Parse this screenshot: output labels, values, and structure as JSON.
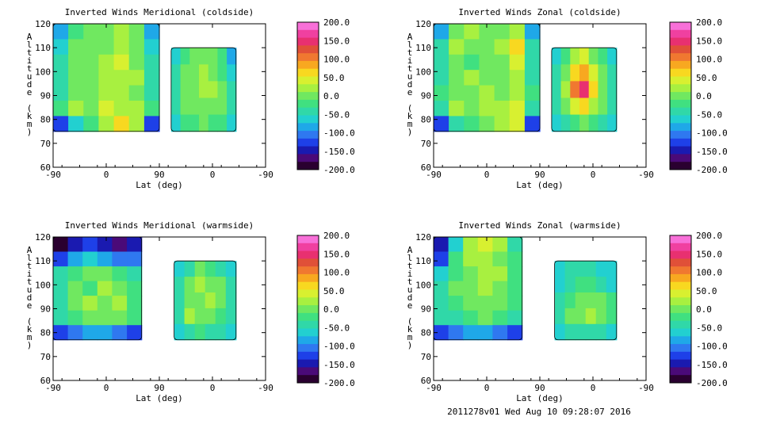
{
  "colorbar": {
    "ticks": [
      "200.0",
      "150.0",
      "100.0",
      "50.0",
      "0.0",
      "-50.0",
      "-100.0",
      "-150.0",
      "-200.0"
    ],
    "colors": [
      "#2a0030",
      "#4a0a78",
      "#1a1ab0",
      "#1e40e8",
      "#2f78f0",
      "#1fa8e8",
      "#22d0d0",
      "#30d8a8",
      "#40e080",
      "#70e860",
      "#a8f040",
      "#d8f030",
      "#f8d820",
      "#f8a820",
      "#f07830",
      "#e05038",
      "#e83070",
      "#f040a0",
      "#f870d8"
    ]
  },
  "footer": {
    "text": "2011278v01 Wed Aug 10 09:28:07 2016"
  },
  "chart_data": [
    {
      "type": "heatmap",
      "title": "Inverted Winds Meridional (coldside)",
      "xlabel": "Lat (deg)",
      "ylabel": "Altitude (km)",
      "x_tick_labels": [
        "-90",
        "0",
        "90",
        "0",
        "-90"
      ],
      "y_tick_labels": [
        "60",
        "70",
        "80",
        "90",
        "100",
        "110",
        "120"
      ],
      "ylim": [
        60,
        120
      ],
      "colorbar_range": [
        -200,
        200
      ],
      "legend_position": "right",
      "regions": [
        {
          "x0": -90,
          "x1": 90,
          "y0": 75,
          "y1": 120,
          "values": [
            [
              -90,
              -20,
              0,
              5,
              20,
              -10,
              -90
            ],
            [
              -60,
              0,
              5,
              10,
              30,
              0,
              -60
            ],
            [
              -40,
              10,
              0,
              20,
              40,
              10,
              -40
            ],
            [
              -40,
              5,
              10,
              15,
              30,
              15,
              -40
            ],
            [
              -50,
              0,
              10,
              30,
              20,
              10,
              -50
            ],
            [
              -30,
              20,
              10,
              40,
              30,
              20,
              -30
            ],
            [
              -120,
              -60,
              -20,
              20,
              60,
              30,
              -120
            ]
          ]
        },
        {
          "x0": 110,
          "x1": 220,
          "y0": 75,
          "y1": 110,
          "values": [
            [
              -60,
              -20,
              -10,
              -10,
              0,
              -30,
              -80
            ],
            [
              -40,
              -10,
              10,
              30,
              0,
              -20,
              -60
            ],
            [
              -40,
              0,
              10,
              20,
              20,
              0,
              -40
            ],
            [
              -40,
              -10,
              0,
              10,
              0,
              -10,
              -40
            ],
            [
              -60,
              -30,
              -20,
              -10,
              -20,
              -30,
              -60
            ]
          ]
        }
      ]
    },
    {
      "type": "heatmap",
      "title": "Inverted Winds Zonal (coldside)",
      "xlabel": "Lat (deg)",
      "ylabel": "Altitude (km)",
      "x_tick_labels": [
        "-90",
        "0",
        "90",
        "0",
        "-90"
      ],
      "y_tick_labels": [
        "60",
        "70",
        "80",
        "90",
        "100",
        "110",
        "120"
      ],
      "ylim": [
        60,
        120
      ],
      "colorbar_range": [
        -200,
        200
      ],
      "legend_position": "right",
      "regions": [
        {
          "x0": -90,
          "x1": 90,
          "y0": 75,
          "y1": 120,
          "values": [
            [
              -80,
              10,
              20,
              10,
              0,
              30,
              -80
            ],
            [
              -40,
              20,
              10,
              -10,
              20,
              60,
              -40
            ],
            [
              -40,
              0,
              -20,
              0,
              10,
              40,
              -40
            ],
            [
              -40,
              0,
              20,
              10,
              0,
              20,
              -40
            ],
            [
              -30,
              10,
              0,
              20,
              10,
              30,
              -30
            ],
            [
              -40,
              20,
              10,
              30,
              20,
              40,
              -40
            ],
            [
              -120,
              -40,
              -20,
              0,
              20,
              40,
              -120
            ]
          ]
        },
        {
          "x0": 110,
          "x1": 220,
          "y0": 75,
          "y1": 110,
          "values": [
            [
              -60,
              -20,
              20,
              40,
              10,
              -20,
              -70
            ],
            [
              -40,
              10,
              60,
              90,
              40,
              0,
              -50
            ],
            [
              -40,
              20,
              110,
              140,
              60,
              10,
              -40
            ],
            [
              -40,
              0,
              40,
              60,
              30,
              0,
              -50
            ],
            [
              -60,
              -40,
              -20,
              -10,
              -20,
              -40,
              -70
            ]
          ]
        }
      ]
    },
    {
      "type": "heatmap",
      "title": "Inverted Winds Meridional (warmside)",
      "xlabel": "Lat (deg)",
      "ylabel": "Altitude (km)",
      "x_tick_labels": [
        "-90",
        "0",
        "90",
        "0",
        "-90"
      ],
      "y_tick_labels": [
        "60",
        "70",
        "80",
        "90",
        "100",
        "110",
        "120"
      ],
      "ylim": [
        60,
        120
      ],
      "colorbar_range": [
        -200,
        200
      ],
      "legend_position": "right",
      "regions": [
        {
          "x0": -90,
          "x1": 60,
          "y0": 77,
          "y1": 120,
          "values": [
            [
              -180,
              -150,
              -120,
              -140,
              -160,
              -150
            ],
            [
              -120,
              -80,
              -60,
              -90,
              -110,
              -100
            ],
            [
              -50,
              -20,
              0,
              -10,
              -30,
              -40
            ],
            [
              -40,
              10,
              -20,
              30,
              0,
              -20
            ],
            [
              -40,
              0,
              20,
              -10,
              20,
              -20
            ],
            [
              -50,
              -20,
              0,
              10,
              -10,
              -30
            ],
            [
              -120,
              -100,
              -80,
              -90,
              -100,
              -120
            ]
          ]
        },
        {
          "x0": 115,
          "x1": 220,
          "y0": 77,
          "y1": 110,
          "values": [
            [
              -60,
              -40,
              -10,
              -30,
              -50,
              -70
            ],
            [
              -40,
              0,
              30,
              10,
              -10,
              -40
            ],
            [
              -40,
              10,
              0,
              20,
              -10,
              -40
            ],
            [
              -40,
              20,
              10,
              0,
              -20,
              -50
            ],
            [
              -70,
              -40,
              -30,
              -40,
              -50,
              -70
            ]
          ]
        }
      ]
    },
    {
      "type": "heatmap",
      "title": "Inverted Winds Zonal (warmside)",
      "xlabel": "Lat (deg)",
      "ylabel": "Altitude (km)",
      "x_tick_labels": [
        "-90",
        "0",
        "90",
        "0",
        "-90"
      ],
      "y_tick_labels": [
        "60",
        "70",
        "80",
        "90",
        "100",
        "110",
        "120"
      ],
      "ylim": [
        60,
        120
      ],
      "colorbar_range": [
        -200,
        200
      ],
      "legend_position": "right",
      "regions": [
        {
          "x0": -90,
          "x1": 60,
          "y0": 77,
          "y1": 120,
          "values": [
            [
              -150,
              -60,
              20,
              40,
              20,
              -40
            ],
            [
              -120,
              -20,
              30,
              20,
              10,
              -20
            ],
            [
              -60,
              -20,
              0,
              30,
              20,
              -20
            ],
            [
              -40,
              -10,
              10,
              20,
              0,
              -30
            ],
            [
              -40,
              -30,
              -10,
              0,
              -10,
              -30
            ],
            [
              -50,
              -40,
              -20,
              -10,
              -20,
              -40
            ],
            [
              -120,
              -100,
              -80,
              -80,
              -100,
              -120
            ]
          ]
        },
        {
          "x0": 115,
          "x1": 220,
          "y0": 77,
          "y1": 110,
          "values": [
            [
              -70,
              -50,
              -40,
              -50,
              -60,
              -70
            ],
            [
              -60,
              -40,
              -30,
              -30,
              -40,
              -60
            ],
            [
              -40,
              -20,
              0,
              10,
              -10,
              -30
            ],
            [
              -40,
              -10,
              10,
              20,
              0,
              -20
            ],
            [
              -70,
              -50,
              -40,
              -40,
              -50,
              -70
            ]
          ]
        }
      ]
    }
  ]
}
